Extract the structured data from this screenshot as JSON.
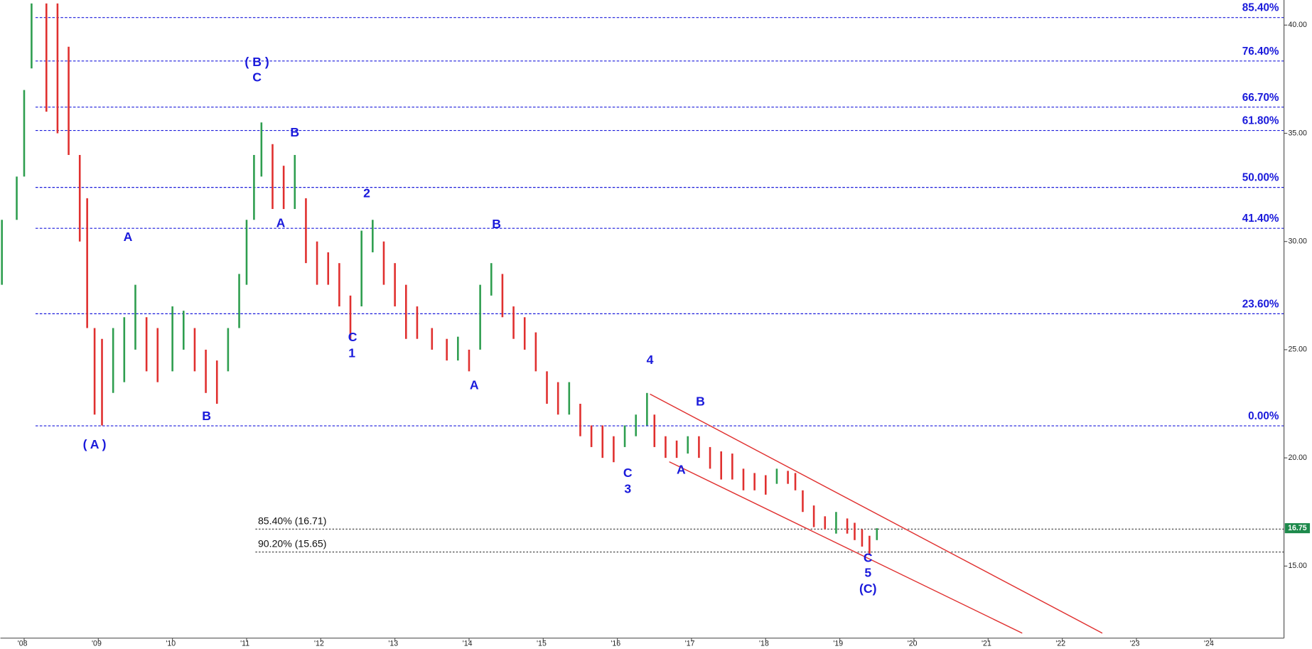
{
  "chart_data": {
    "type": "ohlc",
    "xlim": [
      2007.68,
      2024.99
    ],
    "ylim": [
      11.67,
      41.16
    ],
    "xticks": [
      {
        "value": 2008,
        "label": "'08"
      },
      {
        "value": 2009,
        "label": "'09"
      },
      {
        "value": 2010,
        "label": "'10"
      },
      {
        "value": 2011,
        "label": "'11"
      },
      {
        "value": 2012,
        "label": "'12"
      },
      {
        "value": 2013,
        "label": "'13"
      },
      {
        "value": 2014,
        "label": "'14"
      },
      {
        "value": 2015,
        "label": "'15"
      },
      {
        "value": 2016,
        "label": "'16"
      },
      {
        "value": 2017,
        "label": "'17"
      },
      {
        "value": 2018,
        "label": "'18"
      },
      {
        "value": 2019,
        "label": "'19"
      },
      {
        "value": 2020,
        "label": "'20"
      },
      {
        "value": 2021,
        "label": "'21"
      },
      {
        "value": 2022,
        "label": "'22"
      },
      {
        "value": 2023,
        "label": "'23"
      },
      {
        "value": 2024,
        "label": "'24"
      }
    ],
    "yticks": [
      {
        "value": 15,
        "label": "15.00"
      },
      {
        "value": 20,
        "label": "20.00"
      },
      {
        "value": 25,
        "label": "25.00"
      },
      {
        "value": 30,
        "label": "30.00"
      },
      {
        "value": 35,
        "label": "35.00"
      },
      {
        "value": 40,
        "label": "40.00"
      }
    ],
    "up_color": "#2e9e4f",
    "down_color": "#e0302f",
    "x": [
      2007.7,
      2007.9,
      2008.0,
      2008.1,
      2008.3,
      2008.45,
      2008.6,
      2008.75,
      2008.85,
      2008.95,
      2009.05,
      2009.2,
      2009.35,
      2009.5,
      2009.65,
      2009.8,
      2010.0,
      2010.15,
      2010.3,
      2010.45,
      2010.6,
      2010.75,
      2010.9,
      2011.0,
      2011.1,
      2011.2,
      2011.35,
      2011.5,
      2011.65,
      2011.8,
      2011.95,
      2012.1,
      2012.25,
      2012.4,
      2012.55,
      2012.7,
      2012.85,
      2013.0,
      2013.15,
      2013.3,
      2013.5,
      2013.7,
      2013.85,
      2014.0,
      2014.15,
      2014.3,
      2014.45,
      2014.6,
      2014.75,
      2014.9,
      2015.05,
      2015.2,
      2015.35,
      2015.5,
      2015.65,
      2015.8,
      2015.95,
      2016.1,
      2016.25,
      2016.4,
      2016.5,
      2016.65,
      2016.8,
      2016.95,
      2017.1,
      2017.25,
      2017.4,
      2017.55,
      2017.7,
      2017.85,
      2018.0,
      2018.15,
      2018.3,
      2018.4,
      2018.5,
      2018.65,
      2018.8,
      2018.95,
      2019.1,
      2019.2,
      2019.3,
      2019.4,
      2019.5
    ],
    "high": [
      31,
      33,
      37,
      41,
      41,
      41,
      39,
      34,
      32,
      26,
      25.5,
      26,
      26.5,
      28,
      26.5,
      26,
      27,
      26.8,
      26,
      25,
      24.5,
      26,
      28.5,
      31,
      34,
      35.5,
      34.5,
      33.5,
      34,
      32,
      30,
      29.5,
      29,
      27.5,
      30.5,
      31,
      30,
      29,
      28,
      27,
      26,
      25.5,
      25.6,
      25,
      28,
      29,
      28.5,
      27,
      26.5,
      25.8,
      24,
      23.5,
      23.5,
      22.5,
      21.5,
      21.5,
      21,
      21.5,
      22,
      23,
      22,
      21,
      20.8,
      21,
      21,
      20.5,
      20.3,
      20.2,
      19.5,
      19.3,
      19.2,
      19.5,
      19.4,
      19.3,
      18.5,
      17.8,
      17.3,
      17.5,
      17.2,
      17,
      16.7,
      16.4,
      16.75
    ],
    "low": [
      28,
      31,
      33,
      38,
      36,
      35,
      34,
      30,
      26,
      22,
      21.5,
      23,
      23.5,
      25,
      24,
      23.5,
      24,
      25,
      24,
      23,
      22.5,
      24,
      26,
      28,
      31,
      33,
      31.5,
      31.5,
      31.5,
      29,
      28,
      28,
      27,
      25.5,
      27,
      29.5,
      28,
      27,
      25.5,
      25.5,
      25,
      24.5,
      24.5,
      24,
      25,
      27.5,
      26.5,
      25.5,
      25,
      24,
      22.5,
      22,
      22,
      21,
      20.5,
      20,
      19.8,
      20.5,
      21,
      21.5,
      20.5,
      20,
      20,
      20.2,
      20,
      19.5,
      19,
      19,
      18.5,
      18.5,
      18.3,
      18.8,
      18.8,
      18.5,
      17.5,
      16.8,
      16.7,
      16.5,
      16.5,
      16.2,
      15.9,
      15.5,
      16.2
    ],
    "fib_color": "#1a1adb",
    "fib_levels": [
      {
        "value": 40.35,
        "label": "85.40%"
      },
      {
        "value": 38.34,
        "label": "76.40%"
      },
      {
        "value": 36.21,
        "label": "66.70%"
      },
      {
        "value": 35.13,
        "label": "61.80%"
      },
      {
        "value": 32.5,
        "label": "50.00%"
      },
      {
        "value": 30.61,
        "label": "41.40%"
      },
      {
        "value": 26.66,
        "label": "23.60%"
      },
      {
        "value": 21.48,
        "label": "0.00%"
      }
    ],
    "projection_levels": [
      {
        "value": 16.71,
        "label": "85.40% (16.71)"
      },
      {
        "value": 15.65,
        "label": "90.20% (15.65)"
      }
    ],
    "channel_color": "#e0302f",
    "channel": [
      {
        "x": [
          2016.44,
          2022.54
        ],
        "y": [
          22.95,
          11.9
        ]
      },
      {
        "x": [
          2016.7,
          2021.46
        ],
        "y": [
          19.82,
          11.9
        ]
      }
    ],
    "last_price": 16.75,
    "last_color": "#1e8a4c",
    "annotations": [
      {
        "text": "( B )",
        "x": 2011.14,
        "y": 38.25
      },
      {
        "text": "C",
        "x": 2011.14,
        "y": 37.55
      },
      {
        "text": "A",
        "x": 2009.4,
        "y": 30.18
      },
      {
        "text": "B",
        "x": 2011.65,
        "y": 35.01
      },
      {
        "text": "A",
        "x": 2011.46,
        "y": 30.81
      },
      {
        "text": "2",
        "x": 2012.62,
        "y": 32.2
      },
      {
        "text": "B",
        "x": 2014.37,
        "y": 30.76
      },
      {
        "text": "C",
        "x": 2012.43,
        "y": 25.54
      },
      {
        "text": "1",
        "x": 2012.42,
        "y": 24.81
      },
      {
        "text": "A",
        "x": 2014.07,
        "y": 23.33
      },
      {
        "text": "B",
        "x": 2010.46,
        "y": 21.9
      },
      {
        "text": "( A )",
        "x": 2008.95,
        "y": 20.59
      },
      {
        "text": "4",
        "x": 2016.44,
        "y": 24.5
      },
      {
        "text": "B",
        "x": 2017.12,
        "y": 22.57
      },
      {
        "text": "C",
        "x": 2016.14,
        "y": 19.27
      },
      {
        "text": "3",
        "x": 2016.14,
        "y": 18.53
      },
      {
        "text": "A",
        "x": 2016.86,
        "y": 19.42
      },
      {
        "text": "C",
        "x": 2019.38,
        "y": 15.34
      },
      {
        "text": "5",
        "x": 2019.38,
        "y": 14.65
      },
      {
        "text": "(C)",
        "x": 2019.38,
        "y": 13.91
      }
    ]
  }
}
